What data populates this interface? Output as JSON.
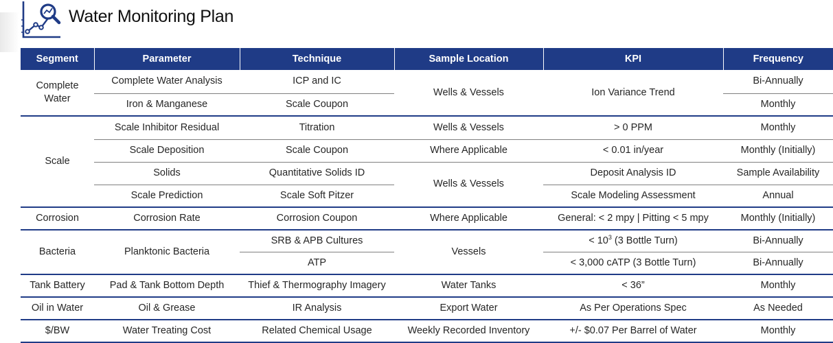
{
  "title": "Water Monitoring Plan",
  "logo_icon": "chart-magnifier-icon",
  "colors": {
    "header_bg": "#1f3b86",
    "header_text": "#ffffff",
    "rule": "#1f3b86"
  },
  "columns": [
    "Segment",
    "Parameter",
    "Technique",
    "Sample Location",
    "KPI",
    "Frequency"
  ],
  "rows": {
    "complete_analysis": {
      "segment": "Complete Water",
      "parameter": "Complete Water Analysis",
      "technique": "ICP and IC",
      "location": "Wells & Vessels",
      "kpi": "Ion Variance Trend",
      "frequency": "Bi-Annually"
    },
    "iron": {
      "parameter": "Iron & Manganese",
      "technique": "Scale Coupon",
      "frequency": "Monthly"
    },
    "inhibitor": {
      "segment": "Scale",
      "parameter": "Scale Inhibitor Residual",
      "technique": "Titration",
      "location": "Wells & Vessels",
      "kpi": "> 0 PPM",
      "frequency": "Monthly"
    },
    "deposition": {
      "parameter": "Scale Deposition",
      "technique": "Scale Coupon",
      "location": "Where Applicable",
      "kpi": "< 0.01 in/year",
      "frequency": "Monthly (Initially)"
    },
    "solids": {
      "parameter": "Solids",
      "technique": "Quantitative Solids ID",
      "location": "Wells & Vessels",
      "kpi": "Deposit Analysis ID",
      "frequency": "Sample Availability"
    },
    "prediction": {
      "parameter": "Scale Prediction",
      "technique": "Scale Soft Pitzer",
      "kpi": "Scale Modeling Assessment",
      "frequency": "Annual"
    },
    "corrosion": {
      "segment": "Corrosion",
      "parameter": "Corrosion Rate",
      "technique": "Corrosion Coupon",
      "location": "Where Applicable",
      "kpi": "General: < 2 mpy | Pitting < 5 mpy",
      "frequency": "Monthly (Initially)"
    },
    "bacteria_srb": {
      "segment": "Bacteria",
      "parameter": "Planktonic Bacteria",
      "technique": "SRB & APB Cultures",
      "location": "Vessels",
      "kpi_prefix": "< 10",
      "kpi_sup": "3",
      "kpi_suffix": " (3 Bottle Turn)",
      "frequency": "Bi-Annually"
    },
    "bacteria_atp": {
      "technique": "ATP",
      "kpi": "< 3,000 cATP (3 Bottle Turn)",
      "frequency": "Bi-Annually"
    },
    "tank": {
      "segment": "Tank Battery",
      "parameter": "Pad & Tank Bottom Depth",
      "technique": "Thief & Thermography Imagery",
      "location": "Water Tanks",
      "kpi": "< 36”",
      "frequency": "Monthly"
    },
    "oil": {
      "segment": "Oil in Water",
      "parameter": "Oil & Grease",
      "technique": "IR Analysis",
      "location": "Export Water",
      "kpi": "As Per Operations Spec",
      "frequency": "As Needed"
    },
    "cost": {
      "segment": "$/BW",
      "parameter": "Water Treating Cost",
      "technique": "Related Chemical Usage",
      "location": "Weekly Recorded Inventory",
      "kpi": "+/- $0.07 Per Barrel of Water",
      "frequency": "Monthly"
    }
  }
}
